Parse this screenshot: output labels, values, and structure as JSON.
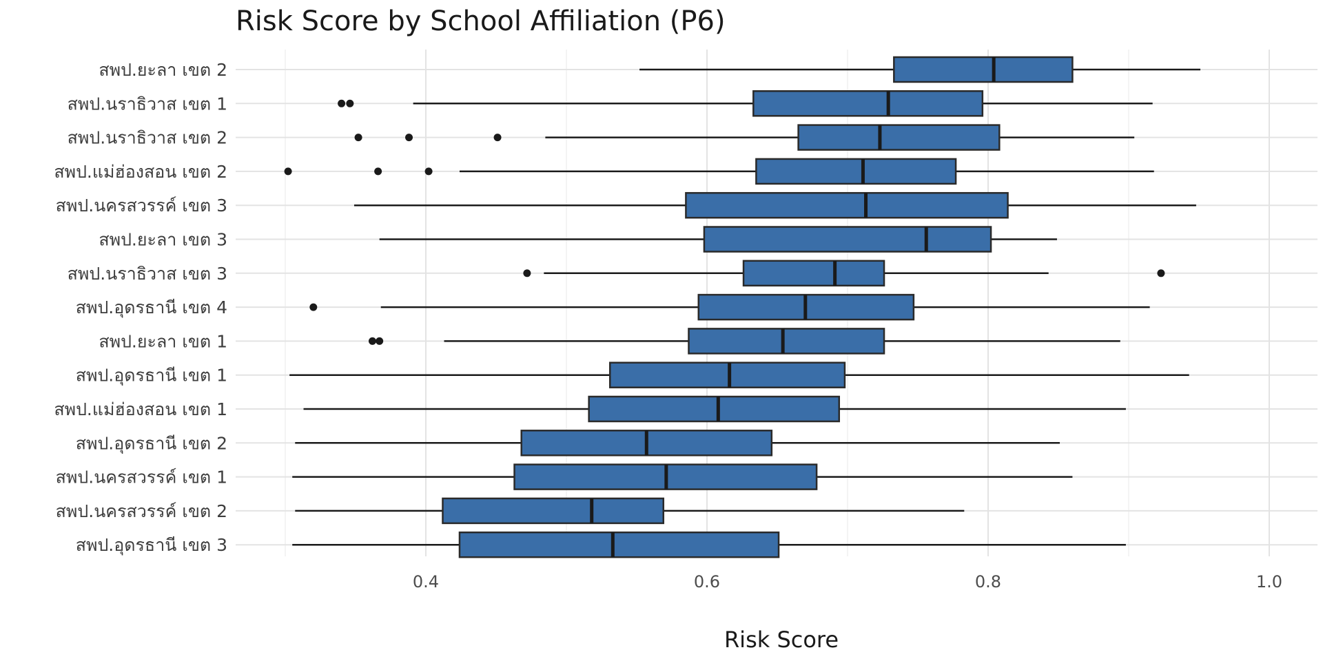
{
  "chart_data": {
    "type": "boxplot",
    "title": "Risk Score by School Affiliation (P6)",
    "xlabel": "Risk Score",
    "ylabel": "",
    "xlim": [
      0.25,
      1.03
    ],
    "xticks": [
      0.4,
      0.6,
      0.8,
      1.0
    ],
    "xtick_labels": [
      "0.4",
      "0.6",
      "0.8",
      "1.0"
    ],
    "orientation": "horizontal",
    "grid": true,
    "box_color": "#3a6ea8",
    "categories": [
      "สพป.ยะลา เขต 2",
      "สพป.นราธิวาส เขต 1",
      "สพป.นราธิวาส เขต 2",
      "สพป.แม่ฮ่องสอน เขต 2",
      "สพป.นครสวรรค์ เขต 3",
      "สพป.ยะลา เขต 3",
      "สพป.นราธิวาส เขต 3",
      "สพป.อุดรธานี เขต 4",
      "สพป.ยะลา เขต 1",
      "สพป.อุดรธานี เขต 1",
      "สพป.แม่ฮ่องสอน เขต 1",
      "สพป.อุดรธานี เขต 2",
      "สพป.นครสวรรค์ เขต 1",
      "สพป.นครสวรรค์ เขต 2",
      "สพป.อุดรธานี เขต 3"
    ],
    "boxes": [
      {
        "min": 0.552,
        "q1": 0.733,
        "median": 0.804,
        "q3": 0.86,
        "max": 0.951,
        "outliers": []
      },
      {
        "min": 0.391,
        "q1": 0.633,
        "median": 0.729,
        "q3": 0.796,
        "max": 0.917,
        "outliers": [
          0.34,
          0.346
        ]
      },
      {
        "min": 0.485,
        "q1": 0.665,
        "median": 0.723,
        "q3": 0.808,
        "max": 0.904,
        "outliers": [
          0.352,
          0.388,
          0.451
        ]
      },
      {
        "min": 0.424,
        "q1": 0.635,
        "median": 0.711,
        "q3": 0.777,
        "max": 0.918,
        "outliers": [
          0.302,
          0.366,
          0.402
        ]
      },
      {
        "min": 0.349,
        "q1": 0.585,
        "median": 0.713,
        "q3": 0.814,
        "max": 0.948,
        "outliers": []
      },
      {
        "min": 0.367,
        "q1": 0.598,
        "median": 0.756,
        "q3": 0.802,
        "max": 0.849,
        "outliers": []
      },
      {
        "min": 0.484,
        "q1": 0.626,
        "median": 0.691,
        "q3": 0.726,
        "max": 0.843,
        "outliers": [
          0.472,
          0.923
        ]
      },
      {
        "min": 0.368,
        "q1": 0.594,
        "median": 0.67,
        "q3": 0.747,
        "max": 0.915,
        "outliers": [
          0.32
        ]
      },
      {
        "min": 0.413,
        "q1": 0.587,
        "median": 0.654,
        "q3": 0.726,
        "max": 0.894,
        "outliers": [
          0.362,
          0.367
        ]
      },
      {
        "min": 0.303,
        "q1": 0.531,
        "median": 0.616,
        "q3": 0.698,
        "max": 0.943,
        "outliers": []
      },
      {
        "min": 0.313,
        "q1": 0.516,
        "median": 0.608,
        "q3": 0.694,
        "max": 0.898,
        "outliers": []
      },
      {
        "min": 0.307,
        "q1": 0.468,
        "median": 0.557,
        "q3": 0.646,
        "max": 0.851,
        "outliers": []
      },
      {
        "min": 0.305,
        "q1": 0.463,
        "median": 0.571,
        "q3": 0.678,
        "max": 0.86,
        "outliers": []
      },
      {
        "min": 0.307,
        "q1": 0.412,
        "median": 0.518,
        "q3": 0.569,
        "max": 0.783,
        "outliers": []
      },
      {
        "min": 0.305,
        "q1": 0.424,
        "median": 0.533,
        "q3": 0.651,
        "max": 0.898,
        "outliers": []
      }
    ]
  }
}
